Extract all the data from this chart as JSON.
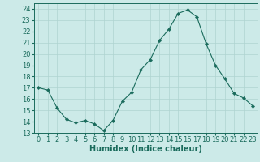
{
  "x": [
    0,
    1,
    2,
    3,
    4,
    5,
    6,
    7,
    8,
    9,
    10,
    11,
    12,
    13,
    14,
    15,
    16,
    17,
    18,
    19,
    20,
    21,
    22,
    23
  ],
  "y": [
    17,
    16.8,
    15.2,
    14.2,
    13.9,
    14.1,
    13.8,
    13.2,
    14.1,
    15.8,
    16.6,
    18.6,
    19.5,
    21.2,
    22.2,
    23.6,
    23.9,
    23.3,
    20.9,
    19.0,
    17.8,
    16.5,
    16.1,
    15.4
  ],
  "line_color": "#1a6b5c",
  "marker": "D",
  "marker_size": 2.2,
  "bg_color": "#cceae8",
  "grid_color": "#afd4d0",
  "xlabel": "Humidex (Indice chaleur)",
  "xlim": [
    -0.5,
    23.5
  ],
  "ylim": [
    13,
    24.5
  ],
  "yticks": [
    13,
    14,
    15,
    16,
    17,
    18,
    19,
    20,
    21,
    22,
    23,
    24
  ],
  "xticks": [
    0,
    1,
    2,
    3,
    4,
    5,
    6,
    7,
    8,
    9,
    10,
    11,
    12,
    13,
    14,
    15,
    16,
    17,
    18,
    19,
    20,
    21,
    22,
    23
  ],
  "tick_color": "#1a6b5c",
  "label_fontsize": 7,
  "tick_fontsize": 6
}
